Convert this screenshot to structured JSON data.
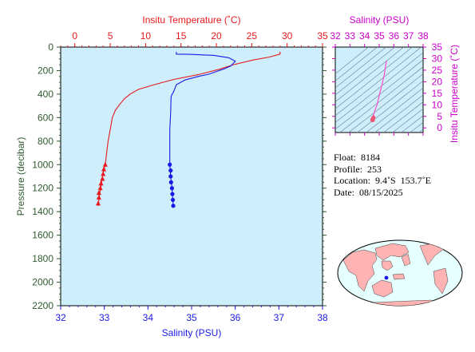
{
  "chart_data": [
    {
      "type": "line",
      "title": "",
      "top_axis": {
        "label": "Insitu Temperature (˚C)",
        "range": [
          -2,
          35
        ],
        "ticks": [
          0,
          5,
          10,
          15,
          20,
          25,
          30,
          35
        ],
        "color": "#e8191c"
      },
      "bottom_axis": {
        "label": "Salinity (PSU)",
        "range": [
          32,
          38
        ],
        "ticks": [
          32,
          33,
          34,
          35,
          36,
          37,
          38
        ],
        "color": "#1a1ae6"
      },
      "left_axis": {
        "label": "Pressure (decibar)",
        "range": [
          0,
          2200
        ],
        "inverted": true,
        "ticks": [
          0,
          200,
          400,
          600,
          800,
          1000,
          1200,
          1400,
          1600,
          1800,
          2000,
          2200
        ],
        "color": "#2e5a2e"
      },
      "series": [
        {
          "variable": "temperature",
          "color": "#e8191c",
          "line": [
            [
              29.0,
              40
            ],
            [
              29.0,
              60
            ],
            [
              27.5,
              85
            ],
            [
              25.2,
              110
            ],
            [
              22.4,
              150
            ],
            [
              20.3,
              190
            ],
            [
              17.4,
              235
            ],
            [
              14.0,
              275
            ],
            [
              11.2,
              320
            ],
            [
              9.0,
              360
            ],
            [
              7.8,
              400
            ],
            [
              7.0,
              440
            ],
            [
              6.3,
              490
            ],
            [
              5.7,
              540
            ],
            [
              5.3,
              600
            ],
            [
              5.0,
              700
            ],
            [
              4.7,
              800
            ],
            [
              4.5,
              900
            ],
            [
              4.3,
              1000
            ],
            [
              4.0,
              1070
            ],
            [
              3.8,
              1150
            ],
            [
              3.5,
              1250
            ],
            [
              3.3,
              1350
            ]
          ],
          "points": [
            [
              4.3,
              1000
            ],
            [
              4.1,
              1040
            ],
            [
              4.0,
              1080
            ],
            [
              3.9,
              1120
            ],
            [
              3.7,
              1160
            ],
            [
              3.6,
              1200
            ],
            [
              3.4,
              1240
            ],
            [
              3.4,
              1280
            ],
            [
              3.3,
              1330
            ]
          ]
        },
        {
          "variable": "salinity",
          "color": "#1a1ae6",
          "line": [
            [
              34.65,
              40
            ],
            [
              34.65,
              60
            ],
            [
              34.95,
              62
            ],
            [
              35.5,
              70
            ],
            [
              35.85,
              90
            ],
            [
              36.0,
              120
            ],
            [
              35.9,
              160
            ],
            [
              35.75,
              185
            ],
            [
              35.55,
              210
            ],
            [
              35.4,
              230
            ],
            [
              35.15,
              250
            ],
            [
              34.85,
              280
            ],
            [
              34.65,
              320
            ],
            [
              34.6,
              370
            ],
            [
              34.53,
              420
            ],
            [
              34.52,
              550
            ],
            [
              34.5,
              700
            ],
            [
              34.5,
              850
            ],
            [
              34.5,
              1000
            ],
            [
              34.52,
              1100
            ],
            [
              34.55,
              1200
            ],
            [
              34.57,
              1300
            ],
            [
              34.58,
              1350
            ]
          ],
          "points": [
            [
              34.5,
              1000
            ],
            [
              34.52,
              1050
            ],
            [
              34.52,
              1100
            ],
            [
              34.53,
              1150
            ],
            [
              34.55,
              1200
            ],
            [
              34.56,
              1250
            ],
            [
              34.57,
              1300
            ],
            [
              34.58,
              1350
            ]
          ]
        }
      ]
    },
    {
      "type": "line",
      "title": "",
      "top_axis": {
        "label": "Salinity (PSU)",
        "range": [
          32,
          38
        ],
        "ticks": [
          32,
          33,
          34,
          35,
          36,
          37,
          38
        ],
        "color": "#cc00cc"
      },
      "right_axis": {
        "label": "Insitu Temperature (˚C)",
        "range": [
          -2,
          35
        ],
        "ticks": [
          0,
          5,
          10,
          15,
          20,
          25,
          30,
          35
        ],
        "color": "#cc00cc"
      },
      "contours": "density isopleths",
      "series": [
        {
          "color": "#ff44cc",
          "points": [
            [
              35.5,
              29.0
            ],
            [
              35.45,
              27.5
            ],
            [
              35.35,
              23.0
            ],
            [
              35.2,
              19.0
            ],
            [
              35.0,
              14.0
            ],
            [
              34.85,
              10.0
            ],
            [
              34.7,
              7.5
            ],
            [
              34.6,
              5.5
            ],
            [
              34.55,
              4.5
            ],
            [
              34.55,
              3.5
            ]
          ]
        }
      ]
    }
  ],
  "info": {
    "float": "Float:  8184",
    "profile": "Profile:  253",
    "location": "Location:  9.4˚S  153.7˚E",
    "date": "Date:  08/15/2025"
  },
  "map": {
    "marker_label": "float position",
    "marker_color": "#1a1ae6",
    "ocean_color": "#e6ffff",
    "land_color": "#ffb3b3"
  }
}
